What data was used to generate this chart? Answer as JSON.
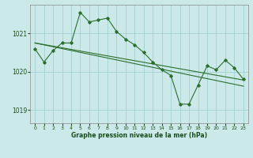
{
  "title": "Graphe pression niveau de la mer (hPa)",
  "background_color": "#cbe9e9",
  "grid_color": "#99cccc",
  "line_color": "#2d6e2d",
  "xlim": [
    -0.5,
    23.5
  ],
  "ylim": [
    1018.65,
    1021.75
  ],
  "yticks": [
    1019,
    1020,
    1021
  ],
  "xticks": [
    0,
    1,
    2,
    3,
    4,
    5,
    6,
    7,
    8,
    9,
    10,
    11,
    12,
    13,
    14,
    15,
    16,
    17,
    18,
    19,
    20,
    21,
    22,
    23
  ],
  "series1": [
    1020.6,
    1020.25,
    1020.55,
    1020.75,
    1020.75,
    1021.55,
    1021.3,
    1021.35,
    1021.4,
    1021.05,
    1020.85,
    1020.7,
    1020.5,
    1020.25,
    1020.05,
    1019.9,
    1019.15,
    1019.15,
    1019.65,
    1020.15,
    1020.05,
    1020.3,
    1020.1,
    1019.8
  ],
  "trend1_x": [
    0,
    23
  ],
  "trend1_y": [
    1020.75,
    1019.78
  ],
  "trend2_x": [
    0,
    23
  ],
  "trend2_y": [
    1020.75,
    1019.62
  ],
  "figsize": [
    3.2,
    2.0
  ],
  "dpi": 100
}
